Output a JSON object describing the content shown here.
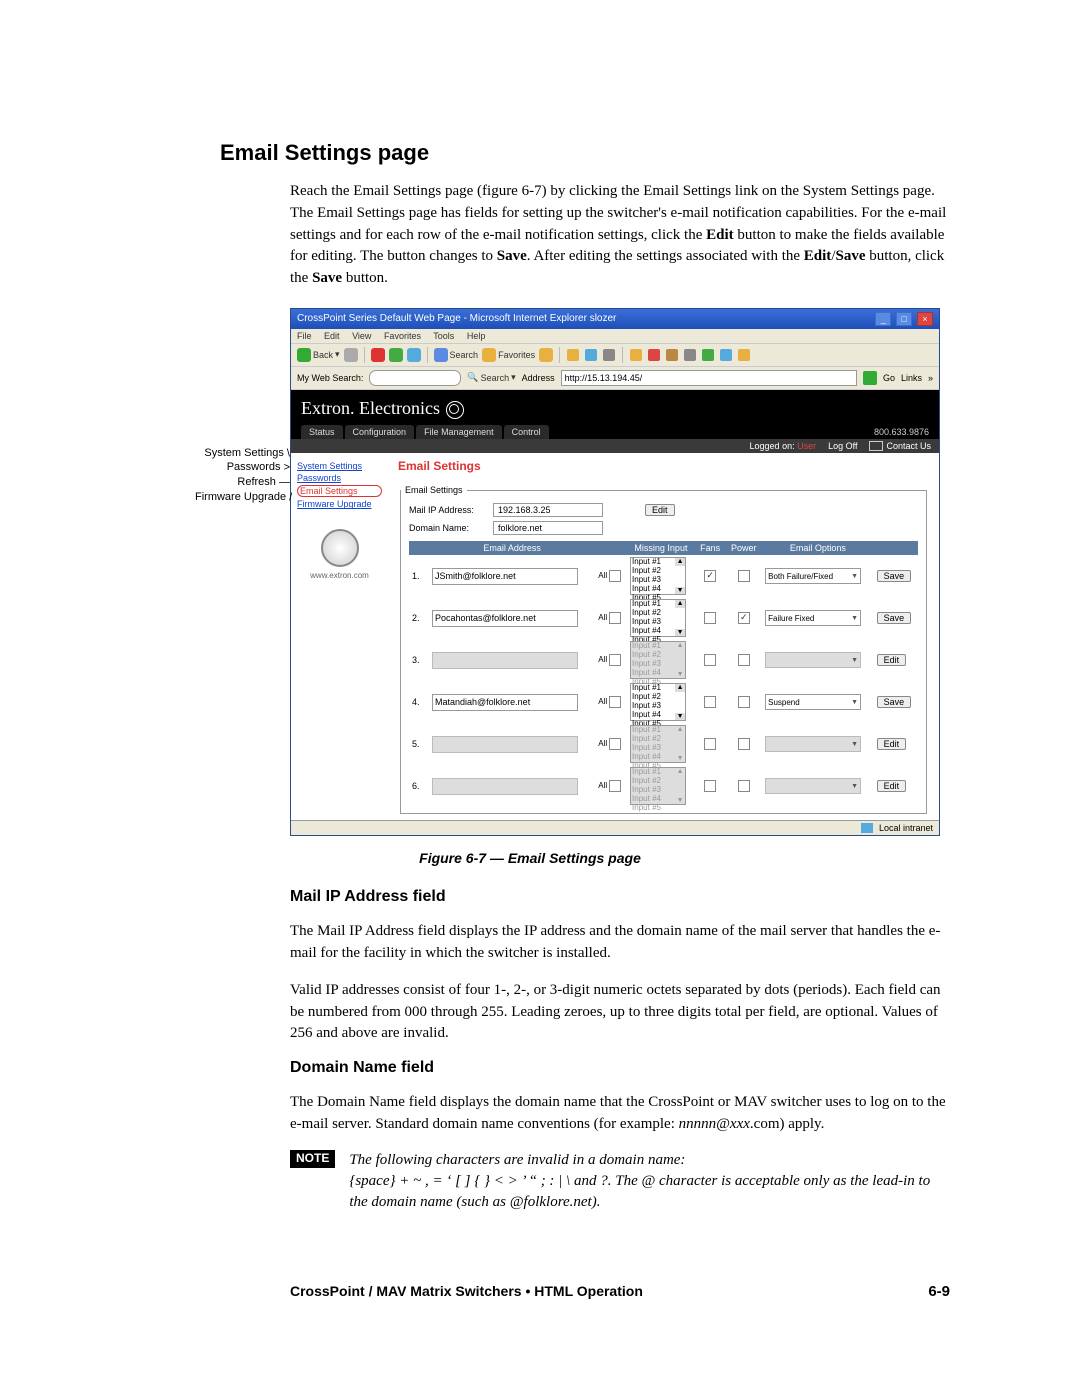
{
  "section_title": "Email Settings page",
  "intro_html": "Reach the Email Settings page (figure 6-7) by clicking the Email Settings link on the System Settings page.  The Email Settings page has fields for setting up the switcher's e-mail notification capabilities.  For the e-mail settings and for each row of the e-mail notification settings, click the <b>Edit</b> button to make the fields available for editing.  The button changes to <b>Save</b>.  After editing the settings associated with the <b>Edit</b>/<b>Save</b> button, click the <b>Save</b> button.",
  "callouts": {
    "c1": "System Settings",
    "c2": "Passwords",
    "c3": "Refresh",
    "c4": "Firmware Upgrade"
  },
  "browser": {
    "title": "CrossPoint Series Default Web Page - Microsoft Internet Explorer slozer",
    "menu": {
      "file": "File",
      "edit": "Edit",
      "view": "View",
      "favorites": "Favorites",
      "tools": "Tools",
      "help": "Help"
    },
    "tb": {
      "back": "Back",
      "search": "Search",
      "favorites": "Favorites"
    },
    "addrbar": {
      "label": "My Web Search:",
      "search_btn": "Search",
      "addr_label": "Address",
      "addr_value": "http://15.13.194.45/",
      "go": "Go",
      "links": "Links"
    },
    "brand": "Extron. Electronics",
    "tabs": {
      "status": "Status",
      "config": "Configuration",
      "files": "File Management",
      "control": "Control"
    },
    "phone": "800.633.9876",
    "subheader": {
      "logged": "Logged on:",
      "user": "User",
      "logoff": "Log Off",
      "contact": "Contact Us"
    },
    "sidebar": {
      "s1": "System Settings",
      "s2": "Passwords",
      "s3": "Email Settings",
      "s4": "Firmware Upgrade",
      "url": "www.extron.com"
    },
    "panel_title": "Email Settings",
    "box_label": "Email Settings",
    "mail_ip_label": "Mail IP Address:",
    "mail_ip_value": "192.168.3.25",
    "domain_label": "Domain Name:",
    "domain_value": "folklore.net",
    "edit_btn": "Edit",
    "th": {
      "email": "Email Address",
      "missing": "Missing Input",
      "fans": "Fans",
      "power": "Power",
      "opts": "Email Options"
    },
    "all": "All",
    "input_lines": "Input #1\nInput #2\nInput #3\nInput #4\nInput #5",
    "rows": [
      {
        "n": "1.",
        "addr": "JSmith@folklore.net",
        "dis": false,
        "fans": true,
        "power": false,
        "opt": "Both Failure/Fixed",
        "btn": "Save"
      },
      {
        "n": "2.",
        "addr": "Pocahontas@folklore.net",
        "dis": false,
        "fans": false,
        "power": true,
        "opt": "Failure Fixed",
        "btn": "Save"
      },
      {
        "n": "3.",
        "addr": "",
        "dis": true,
        "fans": false,
        "power": false,
        "opt": "",
        "btn": "Edit"
      },
      {
        "n": "4.",
        "addr": "Matandiah@folklore.net",
        "dis": false,
        "fans": false,
        "power": false,
        "opt": "Suspend",
        "btn": "Save"
      },
      {
        "n": "5.",
        "addr": "",
        "dis": true,
        "fans": false,
        "power": false,
        "opt": "",
        "btn": "Edit"
      },
      {
        "n": "6.",
        "addr": "",
        "dis": true,
        "fans": false,
        "power": false,
        "opt": "",
        "btn": "Edit"
      }
    ],
    "status_text": "Local intranet"
  },
  "figure_caption": "Figure 6-7 — Email Settings page",
  "h_mailip": "Mail IP Address field",
  "p_mailip_1": "The Mail IP Address field displays the IP address and the domain name of the mail server that handles the e-mail for the facility in which the switcher is installed.",
  "p_mailip_2": "Valid IP addresses consist of four 1-, 2-, or 3-digit numeric octets separated by dots (periods).  Each field can be numbered from 000 through 255.  Leading zeroes, up to three digits total per field, are optional.  Values of 256 and above are invalid.",
  "h_domain": "Domain Name field",
  "p_domain_html": "The Domain Name field displays the domain name that the CrossPoint or MAV switcher uses to log on to the e-mail server.  Standard domain name conventions (for example: <i>nnnnn@xxx</i>.com) apply.",
  "note_label": "NOTE",
  "note_text": "The following characters are invalid in a domain name:\n{space}  +  ~  ,  =  ‘  [  ]  {  }  <  >  ’  “  ;  :  |  \\  and ?.  The @ character is acceptable only as the lead-in to the domain name (such as @folklore.net).",
  "footer_text": "CrossPoint / MAV Matrix Switchers • HTML Operation",
  "page_num": "6-9"
}
